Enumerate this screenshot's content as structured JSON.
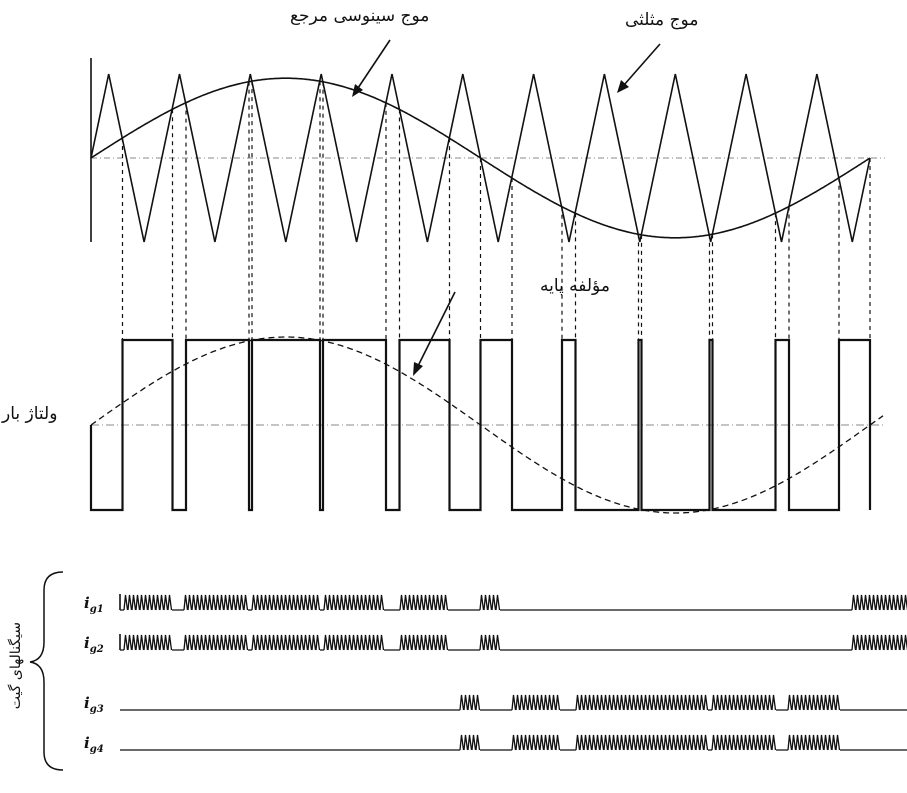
{
  "labels": {
    "sine_ref": "موج سینوسی مرجع",
    "triangle": "موج مثلثی",
    "fundamental": "مؤلفه پایه",
    "load_voltage": "ولتاژ بار",
    "gate_signals": "سیگنالهای گیت"
  },
  "gates": [
    {
      "prefix": "i",
      "sub": "g1"
    },
    {
      "prefix": "i",
      "sub": "g2"
    },
    {
      "prefix": "i",
      "sub": "g3"
    },
    {
      "prefix": "i",
      "sub": "g4"
    }
  ],
  "colors": {
    "ink": "#111111",
    "grid": "#888888"
  }
}
